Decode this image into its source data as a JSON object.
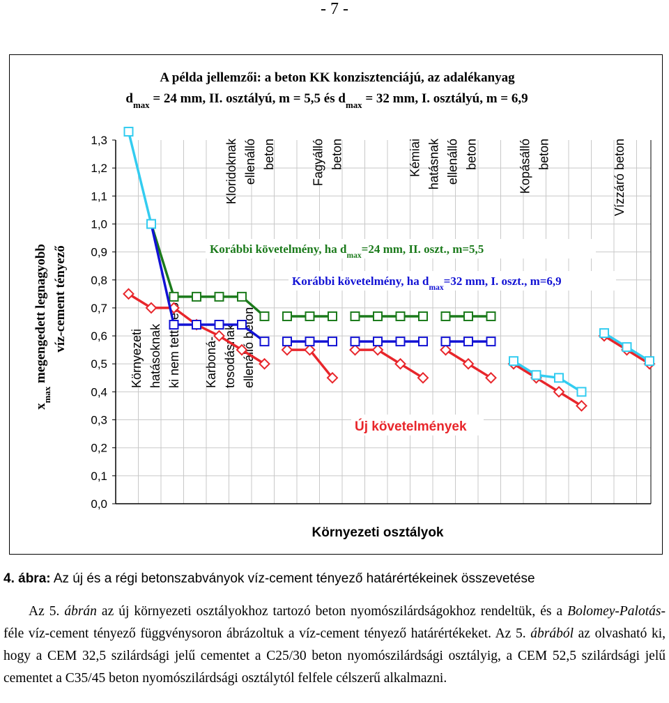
{
  "page_number": "- 7 -",
  "caption": {
    "label": "4. ábra:",
    "text": "Az új és a régi betonszabványok víz-cement tényező határértékeinek összevetése"
  },
  "paragraph": {
    "p1": "Az 5. ",
    "p2": "ábrán",
    "p3": " az új környezeti osztályokhoz tartozó beton nyomószilárdságokhoz rendeltük, és a ",
    "p4": "Bolomey-Palotás",
    "p5": "-féle víz-cement tényező függvénysoron ábrázoltuk a víz-cement tényező határértékeket. Az 5. ",
    "p6": "ábrából",
    "p7": " az olvasható ki, hogy a CEM 32,5 szilárdsági jelű cementet a C25/30 beton nyomószilárdsági osztályig, a CEM 52,5 szilárdsági jelű cementet a C35/45 beton nyomószilárdsági osztálytól felfele célszerű alkalmazni."
  },
  "colors": {
    "red": "#e8262b",
    "green": "#1b7a1b",
    "blue": "#1212d4",
    "cyan": "#33ccf0"
  },
  "chart_data": {
    "type": "line",
    "title_line1": "A példa jellemzői: a beton KK konzisztenciájú, az adalékanyag",
    "title_line2": [
      {
        "t": "d"
      },
      {
        "t": "max",
        "sub": true
      },
      {
        "t": " = 24 mm, II. osztályú, m = 5,5 és d"
      },
      {
        "t": "max",
        "sub": true
      },
      {
        "t": " = 32 mm, I. osztályú, m = 6,9"
      }
    ],
    "ylabel_line1": [
      {
        "t": "x"
      },
      {
        "t": "max",
        "sub": true
      },
      {
        "t": " megengedett legnagyobb"
      }
    ],
    "ylabel_line2": "víz-cement tényező",
    "xlabel": "Környezeti osztályok",
    "ylim": [
      0,
      1.3
    ],
    "yticks": [
      "0,0",
      "0,1",
      "0,2",
      "0,3",
      "0,4",
      "0,5",
      "0,6",
      "0,7",
      "0,8",
      "0,9",
      "1,0",
      "1,1",
      "1,2",
      "1,3"
    ],
    "legend_green": [
      {
        "t": "Korábbi követelmény, ha d"
      },
      {
        "t": "max",
        "sub": true
      },
      {
        "t": "=24 mm, II. oszt., m=5,5"
      }
    ],
    "legend_blue": [
      {
        "t": "Korábbi követelmény, ha d"
      },
      {
        "t": "max",
        "sub": true
      },
      {
        "t": "=32 mm, I. oszt., m=6,9"
      }
    ],
    "legend_red": "Új követelmények",
    "group_labels_top": [
      {
        "lines": [
          "Kloridoknak",
          "ellenálló",
          "beton"
        ]
      },
      {
        "lines": [
          "Fagyálló",
          "beton"
        ]
      },
      {
        "lines": [
          "Kémiai",
          "hatásnak",
          "ellenálló",
          "beton"
        ]
      },
      {
        "lines": [
          "Kopásálló",
          "beton"
        ]
      },
      {
        "lines": [
          "Vízzáró beton"
        ]
      }
    ],
    "group_labels_bottom": [
      {
        "lines": [
          "Környezeti",
          "hatásoknak",
          "ki nem tett beton"
        ]
      },
      {
        "lines": [
          "Karboná-",
          "tosodásnak",
          "ellenálló beton"
        ]
      }
    ],
    "series": [
      {
        "key": "red",
        "color": "#e8262b",
        "marker": "diamond",
        "segments": [
          [
            [
              1,
              0.75
            ],
            [
              2,
              0.7
            ],
            [
              3,
              0.7
            ],
            [
              4,
              0.64
            ],
            [
              5,
              0.6
            ],
            [
              6,
              0.55
            ],
            [
              7,
              0.5
            ]
          ],
          [
            [
              8,
              0.55
            ],
            [
              9,
              0.55
            ],
            [
              10,
              0.45
            ]
          ],
          [
            [
              11,
              0.55
            ],
            [
              12,
              0.55
            ],
            [
              13,
              0.5
            ],
            [
              14,
              0.45
            ]
          ],
          [
            [
              15,
              0.55
            ],
            [
              16,
              0.5
            ],
            [
              17,
              0.45
            ]
          ],
          [
            [
              18,
              0.5
            ],
            [
              19,
              0.45
            ],
            [
              20,
              0.4
            ],
            [
              21,
              0.35
            ]
          ],
          [
            [
              22,
              0.6
            ],
            [
              23,
              0.55
            ],
            [
              24,
              0.5
            ]
          ]
        ]
      },
      {
        "key": "green",
        "color": "#1b7a1b",
        "marker": "square",
        "segments": [
          [
            [
              2,
              1.0
            ],
            [
              3,
              0.74
            ],
            [
              4,
              0.74
            ],
            [
              5,
              0.74
            ],
            [
              6,
              0.74
            ],
            [
              7,
              0.67
            ]
          ],
          [
            [
              8,
              0.67
            ],
            [
              9,
              0.67
            ],
            [
              10,
              0.67
            ]
          ],
          [
            [
              11,
              0.67
            ],
            [
              12,
              0.67
            ],
            [
              13,
              0.67
            ],
            [
              14,
              0.67
            ]
          ],
          [
            [
              15,
              0.67
            ],
            [
              16,
              0.67
            ],
            [
              17,
              0.67
            ]
          ]
        ]
      },
      {
        "key": "blue",
        "color": "#1212d4",
        "marker": "square",
        "segments": [
          [
            [
              2,
              1.0
            ],
            [
              3,
              0.64
            ],
            [
              4,
              0.64
            ],
            [
              5,
              0.64
            ],
            [
              6,
              0.64
            ],
            [
              7,
              0.58
            ]
          ],
          [
            [
              8,
              0.58
            ],
            [
              9,
              0.58
            ],
            [
              10,
              0.58
            ]
          ],
          [
            [
              11,
              0.58
            ],
            [
              12,
              0.58
            ],
            [
              13,
              0.58
            ],
            [
              14,
              0.58
            ]
          ],
          [
            [
              15,
              0.58
            ],
            [
              16,
              0.58
            ],
            [
              17,
              0.58
            ]
          ]
        ]
      },
      {
        "key": "cyan",
        "color": "#33ccf0",
        "marker": "square",
        "segments": [
          [
            [
              1,
              1.33
            ],
            [
              2,
              1.0
            ]
          ],
          [
            [
              18,
              0.51
            ],
            [
              19,
              0.46
            ],
            [
              20,
              0.45
            ],
            [
              21,
              0.4
            ]
          ],
          [
            [
              22,
              0.61
            ],
            [
              23,
              0.56
            ],
            [
              24,
              0.51
            ]
          ]
        ]
      }
    ]
  }
}
